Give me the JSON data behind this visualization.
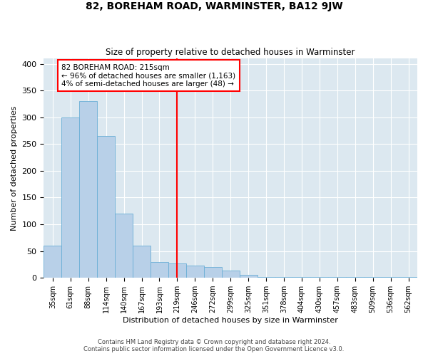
{
  "title": "82, BOREHAM ROAD, WARMINSTER, BA12 9JW",
  "subtitle": "Size of property relative to detached houses in Warminster",
  "xlabel": "Distribution of detached houses by size in Warminster",
  "ylabel": "Number of detached properties",
  "bar_color": "#b8d0e8",
  "bar_edge_color": "#6aaed6",
  "background_color": "#dce8f0",
  "grid_color": "#ffffff",
  "vline_color": "red",
  "annotation_text": "82 BOREHAM ROAD: 215sqm\n← 96% of detached houses are smaller (1,163)\n4% of semi-detached houses are larger (48) →",
  "annotation_box_color": "white",
  "annotation_box_edge": "red",
  "footer": "Contains HM Land Registry data © Crown copyright and database right 2024.\nContains public sector information licensed under the Open Government Licence v3.0.",
  "bin_labels": [
    "35sqm",
    "61sqm",
    "88sqm",
    "114sqm",
    "140sqm",
    "167sqm",
    "193sqm",
    "219sqm",
    "246sqm",
    "272sqm",
    "299sqm",
    "325sqm",
    "351sqm",
    "378sqm",
    "404sqm",
    "430sqm",
    "457sqm",
    "483sqm",
    "509sqm",
    "536sqm",
    "562sqm"
  ],
  "bar_heights": [
    60,
    300,
    330,
    265,
    120,
    60,
    30,
    27,
    23,
    20,
    13,
    5,
    1,
    1,
    2,
    1,
    1,
    2,
    1,
    1,
    2
  ],
  "ylim": [
    0,
    410
  ],
  "yticks": [
    0,
    50,
    100,
    150,
    200,
    250,
    300,
    350,
    400
  ]
}
